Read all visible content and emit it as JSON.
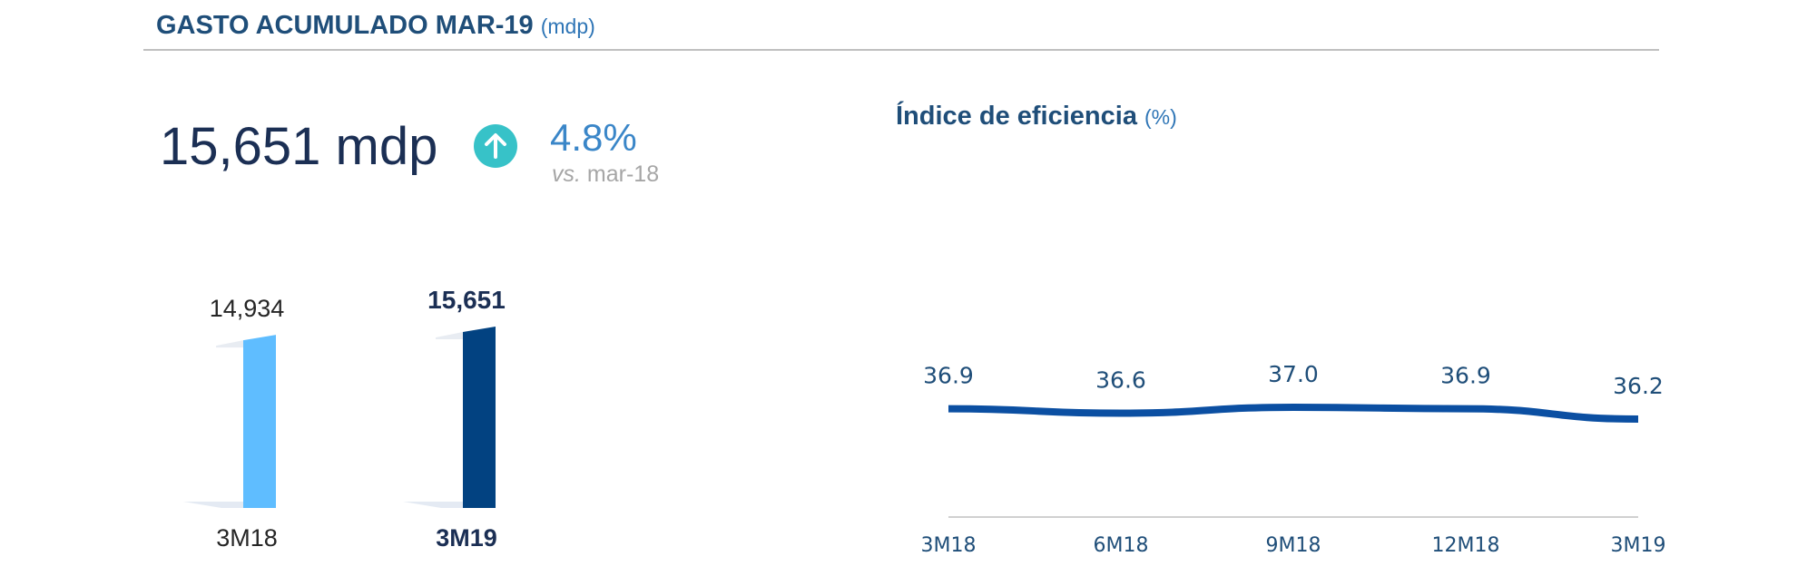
{
  "header": {
    "title": "GASTO ACUMULADO MAR-19",
    "unit": "(mdp)"
  },
  "kpi": {
    "value": "15,651 mdp",
    "change": "4.8%",
    "vs_prefix": "vs.",
    "vs_period": "mar-18",
    "arrow_icon": "arrow-up-circle-icon",
    "arrow_color": "#37c2c8"
  },
  "chart_data": [
    {
      "type": "bar",
      "categories": [
        "3M18",
        "3M19"
      ],
      "values": [
        14934,
        15651
      ],
      "value_labels": [
        "14,934",
        "15,651"
      ],
      "colors": [
        "#5fbdff",
        "#024281"
      ],
      "bold_category": "3M19",
      "xlabel": "",
      "ylabel": ""
    },
    {
      "type": "line",
      "title": "Índice de eficiencia",
      "unit": "(%)",
      "categories": [
        "3M18",
        "6M18",
        "9M18",
        "12M18",
        "3M19"
      ],
      "values": [
        36.9,
        36.6,
        37.0,
        36.9,
        36.2
      ],
      "value_labels": [
        "36.9",
        "36.6",
        "37.0",
        "36.9",
        "36.2"
      ],
      "color": "#0b4fa2",
      "xlabel": "",
      "ylabel": ""
    }
  ]
}
